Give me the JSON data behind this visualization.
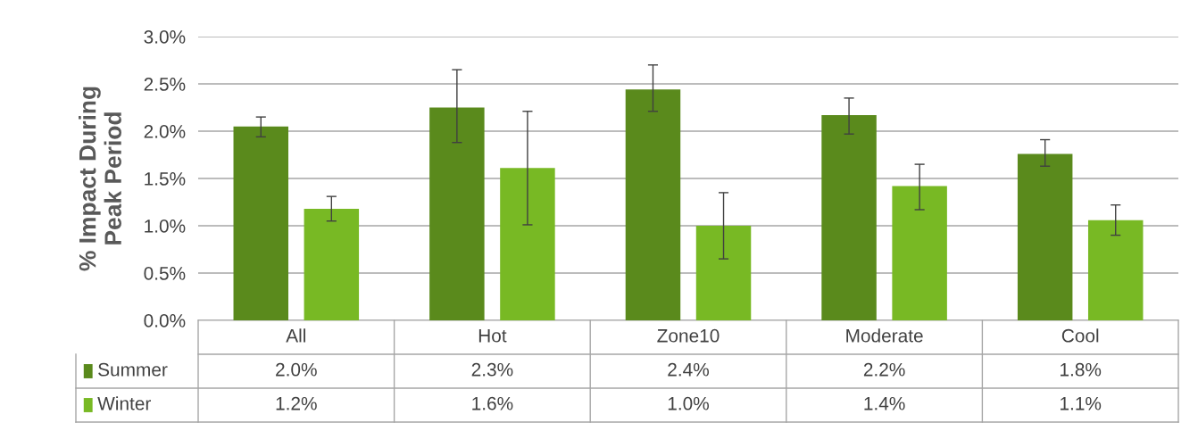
{
  "chart_data": {
    "type": "bar",
    "ylabel": "% Impact During\nPeak Period",
    "categories": [
      "All",
      "Hot",
      "Zone10",
      "Moderate",
      "Cool"
    ],
    "series": [
      {
        "name": "Summer",
        "color": "#5a8a1c",
        "values": [
          2.05,
          2.25,
          2.44,
          2.17,
          1.76
        ],
        "errors": [
          [
            1.94,
            2.15
          ],
          [
            1.88,
            2.65
          ],
          [
            2.21,
            2.7
          ],
          [
            1.97,
            2.35
          ],
          [
            1.63,
            1.91
          ]
        ],
        "value_labels": [
          "2.0%",
          "2.3%",
          "2.4%",
          "2.2%",
          "1.8%"
        ]
      },
      {
        "name": "Winter",
        "color": "#78b924",
        "values": [
          1.18,
          1.61,
          1.0,
          1.42,
          1.06
        ],
        "errors": [
          [
            1.05,
            1.31
          ],
          [
            1.01,
            2.21
          ],
          [
            0.65,
            1.35
          ],
          [
            1.17,
            1.65
          ],
          [
            0.9,
            1.22
          ]
        ],
        "value_labels": [
          "1.2%",
          "1.6%",
          "1.0%",
          "1.4%",
          "1.1%"
        ]
      }
    ],
    "ylim": [
      0,
      3.0
    ],
    "yticks": [
      {
        "value": 0,
        "label": "0.0%"
      },
      {
        "value": 0.5,
        "label": "0.5%"
      },
      {
        "value": 1.0,
        "label": "1.0%"
      },
      {
        "value": 1.5,
        "label": "1.5%"
      },
      {
        "value": 2.0,
        "label": "2.0%"
      },
      {
        "value": 2.5,
        "label": "2.5%"
      },
      {
        "value": 3.0,
        "label": "3.0%"
      }
    ],
    "grid": "y",
    "legend": "bottom"
  }
}
